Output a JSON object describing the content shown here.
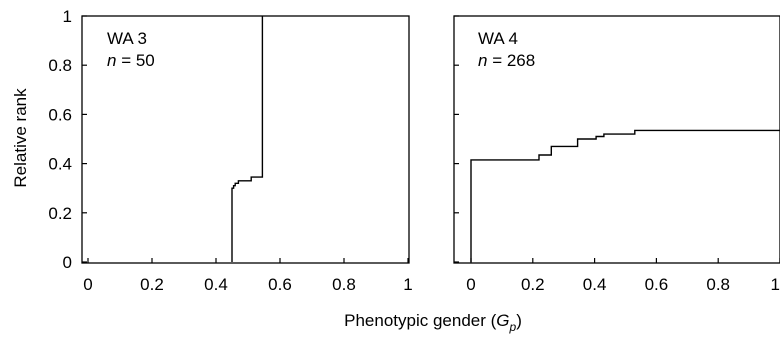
{
  "figure": {
    "ylabel": "Relative rank",
    "xlabel_main": "Phenotypic gender (",
    "xlabel_var": "G",
    "xlabel_sub": "p",
    "xlabel_close": ")"
  },
  "chart_data": [
    {
      "type": "line",
      "step": true,
      "panel_label": "WA 3",
      "n_symbol": "n",
      "n_text": " = 50",
      "xlim": [
        0,
        1
      ],
      "ylim": [
        0,
        1
      ],
      "xticks": [
        "0",
        "0.2",
        "0.4",
        "0.6",
        "0.8",
        "1"
      ],
      "yticks": [
        "0",
        "0.2",
        "0.4",
        "0.6",
        "0.8",
        "1"
      ],
      "series": [
        {
          "points": [
            [
              0.45,
              0.0
            ],
            [
              0.45,
              0.3
            ],
            [
              0.455,
              0.3
            ],
            [
              0.455,
              0.31
            ],
            [
              0.46,
              0.31
            ],
            [
              0.46,
              0.32
            ],
            [
              0.47,
              0.32
            ],
            [
              0.47,
              0.33
            ],
            [
              0.51,
              0.33
            ],
            [
              0.51,
              0.345
            ],
            [
              0.545,
              0.345
            ],
            [
              0.545,
              1.0
            ]
          ]
        }
      ]
    },
    {
      "type": "line",
      "step": true,
      "panel_label": "WA 4",
      "n_symbol": "n",
      "n_text": " = 268",
      "xlim": [
        0,
        1
      ],
      "ylim": [
        0,
        1
      ],
      "xticks": [
        "0",
        "0.2",
        "0.4",
        "0.6",
        "0.8",
        "1"
      ],
      "yticks": [],
      "series": [
        {
          "points": [
            [
              0.0,
              0.0
            ],
            [
              0.0,
              0.415
            ],
            [
              0.22,
              0.415
            ],
            [
              0.22,
              0.435
            ],
            [
              0.26,
              0.435
            ],
            [
              0.26,
              0.47
            ],
            [
              0.345,
              0.47
            ],
            [
              0.345,
              0.5
            ],
            [
              0.405,
              0.5
            ],
            [
              0.405,
              0.51
            ],
            [
              0.43,
              0.51
            ],
            [
              0.43,
              0.52
            ],
            [
              0.53,
              0.52
            ],
            [
              0.53,
              0.535
            ],
            [
              1.0,
              0.535
            ]
          ]
        }
      ]
    }
  ]
}
